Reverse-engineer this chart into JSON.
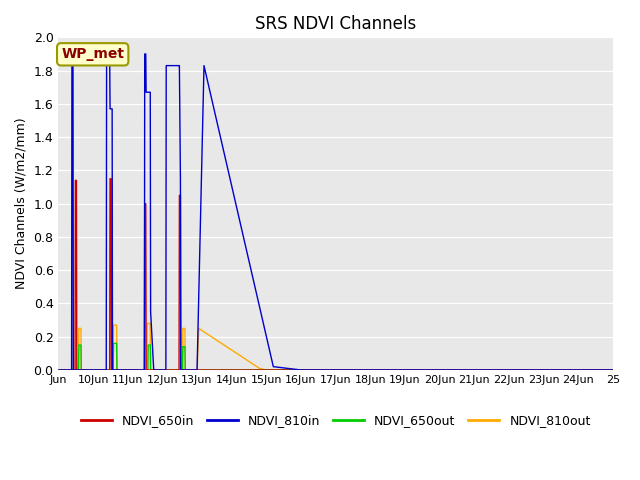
{
  "title": "SRS NDVI Channels",
  "ylabel": "NDVI Channels (W/m2/mm)",
  "ylim": [
    0.0,
    2.0
  ],
  "yticks": [
    0.0,
    0.2,
    0.4,
    0.6,
    0.8,
    1.0,
    1.2,
    1.4,
    1.6,
    1.8,
    2.0
  ],
  "background_color": "#e8e8e8",
  "annotation_text": "WP_met",
  "annotation_color": "#8b0000",
  "annotation_bg": "#ffffcc",
  "legend": [
    {
      "label": "NDVI_650in",
      "color": "#cc0000"
    },
    {
      "label": "NDVI_810in",
      "color": "#0000cc"
    },
    {
      "label": "NDVI_650out",
      "color": "#00cc00"
    },
    {
      "label": "NDVI_810out",
      "color": "#ffaa00"
    }
  ],
  "series": {
    "NDVI_650in": {
      "color": "#cc0000",
      "x": [
        9.0,
        9.48,
        9.49,
        9.52,
        9.53,
        9.6,
        9.75,
        10.0,
        10.48,
        10.49,
        10.52,
        10.53,
        10.65,
        10.75,
        11.0,
        11.48,
        11.49,
        11.52,
        11.53,
        11.65,
        11.75,
        12.0,
        12.48,
        12.49,
        12.52,
        12.53,
        12.6,
        12.75,
        13.0,
        25.0
      ],
      "y": [
        0.0,
        0.0,
        1.14,
        1.14,
        0.0,
        0.0,
        0.0,
        0.0,
        0.0,
        1.15,
        1.15,
        0.0,
        0.0,
        0.0,
        0.0,
        0.0,
        1.0,
        1.0,
        0.0,
        0.0,
        0.0,
        0.0,
        0.0,
        1.05,
        1.05,
        0.0,
        0.0,
        0.0,
        0.0,
        0.0
      ]
    },
    "NDVI_810in": {
      "color": "#0000cc",
      "x": [
        9.0,
        9.38,
        9.39,
        9.42,
        9.43,
        9.6,
        10.0,
        10.38,
        10.39,
        10.48,
        10.49,
        10.55,
        10.56,
        11.0,
        11.48,
        11.49,
        11.52,
        11.53,
        11.65,
        11.66,
        11.75,
        12.0,
        12.1,
        12.11,
        12.48,
        12.49,
        12.52,
        12.53,
        12.75,
        13.0,
        13.2,
        15.2,
        16.0,
        25.0
      ],
      "y": [
        0.0,
        0.0,
        1.88,
        1.88,
        0.0,
        0.0,
        0.0,
        0.0,
        1.85,
        1.85,
        1.57,
        1.57,
        0.0,
        0.0,
        0.0,
        1.9,
        1.9,
        1.67,
        1.67,
        0.35,
        0.0,
        0.0,
        0.0,
        1.83,
        1.83,
        1.83,
        1.15,
        0.0,
        0.0,
        0.0,
        1.83,
        0.02,
        0.0,
        0.0
      ]
    },
    "NDVI_650out": {
      "color": "#00cc00",
      "x": [
        9.0,
        9.58,
        9.59,
        9.65,
        9.66,
        9.75,
        10.0,
        10.58,
        10.59,
        10.68,
        10.69,
        10.75,
        11.0,
        11.58,
        11.59,
        11.65,
        11.66,
        11.75,
        12.0,
        12.58,
        12.59,
        12.65,
        12.66,
        13.0,
        25.0
      ],
      "y": [
        0.0,
        0.0,
        0.15,
        0.15,
        0.0,
        0.0,
        0.0,
        0.0,
        0.16,
        0.16,
        0.0,
        0.0,
        0.0,
        0.0,
        0.15,
        0.15,
        0.0,
        0.0,
        0.0,
        0.0,
        0.14,
        0.14,
        0.0,
        0.0,
        0.0
      ]
    },
    "NDVI_810out": {
      "color": "#ffaa00",
      "x": [
        9.0,
        9.58,
        9.59,
        9.65,
        9.66,
        9.75,
        10.0,
        10.58,
        10.59,
        10.68,
        10.69,
        10.75,
        11.0,
        11.55,
        11.56,
        11.65,
        11.66,
        11.75,
        12.0,
        12.58,
        12.59,
        12.65,
        12.66,
        13.0,
        13.05,
        14.8,
        15.0,
        25.0
      ],
      "y": [
        0.0,
        0.0,
        0.25,
        0.25,
        0.0,
        0.0,
        0.0,
        0.0,
        0.27,
        0.27,
        0.0,
        0.0,
        0.0,
        0.0,
        0.28,
        0.28,
        0.0,
        0.0,
        0.0,
        0.0,
        0.25,
        0.25,
        0.0,
        0.0,
        0.25,
        0.01,
        0.0,
        0.0
      ]
    }
  },
  "xtick_positions": [
    9,
    10,
    11,
    12,
    13,
    14,
    15,
    16,
    17,
    18,
    19,
    20,
    21,
    22,
    23,
    24,
    25
  ],
  "xtick_labels": [
    "Jun",
    "10Jun",
    "11Jun",
    "12Jun",
    "13Jun",
    "14Jun",
    "15Jun",
    "16Jun",
    "17Jun",
    "18Jun",
    "19Jun",
    "20Jun",
    "21Jun",
    "22Jun",
    "23Jun",
    "24Jun",
    "25"
  ],
  "xlim": [
    9,
    25
  ],
  "fig_width": 6.4,
  "fig_height": 4.8,
  "dpi": 100
}
